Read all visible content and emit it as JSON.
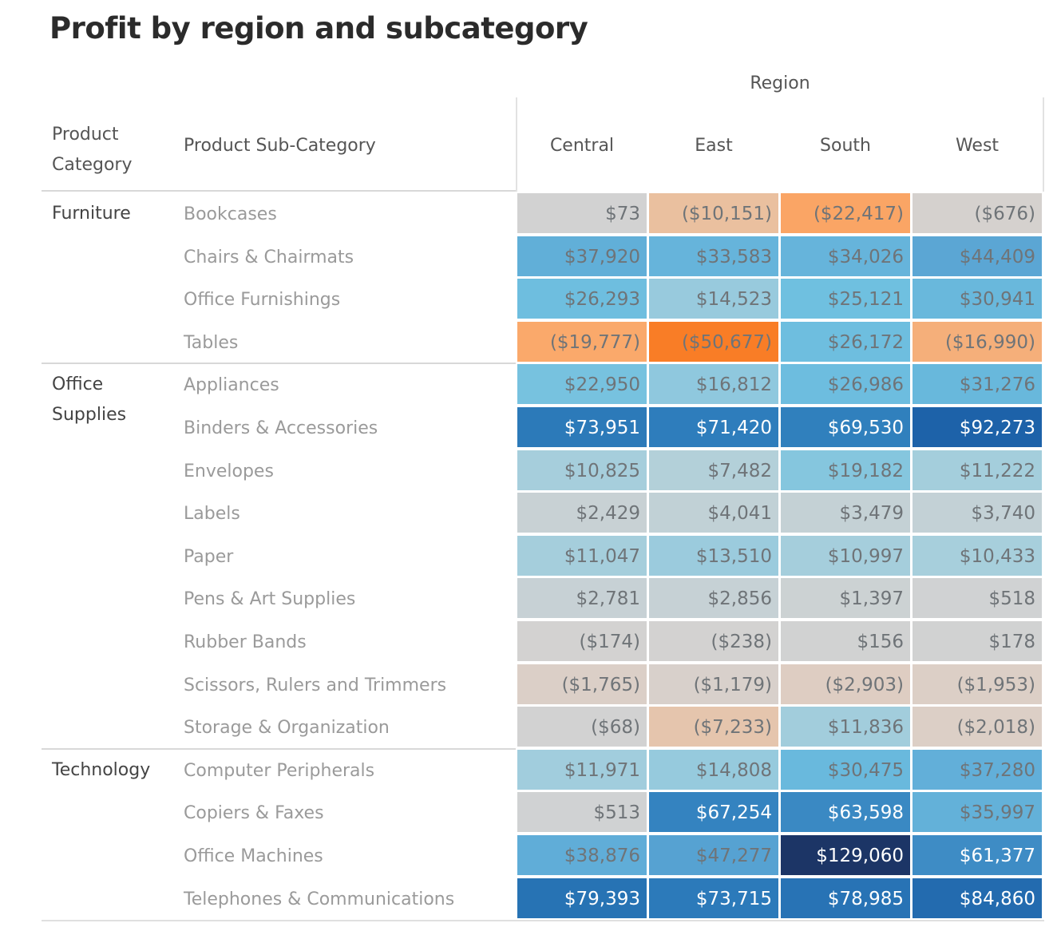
{
  "chart_data": {
    "type": "heatmap",
    "title": "Profit by region and subcategory",
    "column_group_label": "Region",
    "row_headers": [
      "Product Category",
      "Product Sub-Category"
    ],
    "columns": [
      "Central",
      "East",
      "South",
      "West"
    ],
    "color_scale": {
      "type": "diverging",
      "negative": "#f97d26",
      "neutral": "#d2d2d2",
      "positive": "#1c3566"
    },
    "groups": [
      {
        "category": "Furniture",
        "rows": [
          {
            "sub": "Bookcases",
            "values": [
              73,
              -10151,
              -22417,
              -676
            ],
            "labels": [
              "$73",
              "($10,151)",
              "($22,417)",
              "($676)"
            ]
          },
          {
            "sub": "Chairs & Chairmats",
            "values": [
              37920,
              33583,
              34026,
              44409
            ],
            "labels": [
              "$37,920",
              "$33,583",
              "$34,026",
              "$44,409"
            ]
          },
          {
            "sub": "Office Furnishings",
            "values": [
              26293,
              14523,
              25121,
              30941
            ],
            "labels": [
              "$26,293",
              "$14,523",
              "$25,121",
              "$30,941"
            ]
          },
          {
            "sub": "Tables",
            "values": [
              -19777,
              -50677,
              26172,
              -16990
            ],
            "labels": [
              "($19,777)",
              "($50,677)",
              "$26,172",
              "($16,990)"
            ]
          }
        ]
      },
      {
        "category": "Office Supplies",
        "rows": [
          {
            "sub": "Appliances",
            "values": [
              22950,
              16812,
              26986,
              31276
            ],
            "labels": [
              "$22,950",
              "$16,812",
              "$26,986",
              "$31,276"
            ]
          },
          {
            "sub": "Binders & Accessories",
            "values": [
              73951,
              71420,
              69530,
              92273
            ],
            "labels": [
              "$73,951",
              "$71,420",
              "$69,530",
              "$92,273"
            ]
          },
          {
            "sub": "Envelopes",
            "values": [
              10825,
              7482,
              19182,
              11222
            ],
            "labels": [
              "$10,825",
              "$7,482",
              "$19,182",
              "$11,222"
            ]
          },
          {
            "sub": "Labels",
            "values": [
              2429,
              4041,
              3479,
              3740
            ],
            "labels": [
              "$2,429",
              "$4,041",
              "$3,479",
              "$3,740"
            ]
          },
          {
            "sub": "Paper",
            "values": [
              11047,
              13510,
              10997,
              10433
            ],
            "labels": [
              "$11,047",
              "$13,510",
              "$10,997",
              "$10,433"
            ]
          },
          {
            "sub": "Pens & Art Supplies",
            "values": [
              2781,
              2856,
              1397,
              518
            ],
            "labels": [
              "$2,781",
              "$2,856",
              "$1,397",
              "$518"
            ]
          },
          {
            "sub": "Rubber Bands",
            "values": [
              -174,
              -238,
              156,
              178
            ],
            "labels": [
              "($174)",
              "($238)",
              "$156",
              "$178"
            ]
          },
          {
            "sub": "Scissors, Rulers and Trimmers",
            "values": [
              -1765,
              -1179,
              -2903,
              -1953
            ],
            "labels": [
              "($1,765)",
              "($1,179)",
              "($2,903)",
              "($1,953)"
            ]
          },
          {
            "sub": "Storage & Organization",
            "values": [
              -68,
              -7233,
              11836,
              -2018
            ],
            "labels": [
              "($68)",
              "($7,233)",
              "$11,836",
              "($2,018)"
            ]
          }
        ]
      },
      {
        "category": "Technology",
        "rows": [
          {
            "sub": "Computer Peripherals",
            "values": [
              11971,
              14808,
              30475,
              37280
            ],
            "labels": [
              "$11,971",
              "$14,808",
              "$30,475",
              "$37,280"
            ]
          },
          {
            "sub": "Copiers & Faxes",
            "values": [
              513,
              67254,
              63598,
              35997
            ],
            "labels": [
              "$513",
              "$67,254",
              "$63,598",
              "$35,997"
            ]
          },
          {
            "sub": "Office Machines",
            "values": [
              38876,
              47277,
              129060,
              61377
            ],
            "labels": [
              "$38,876",
              "$47,277",
              "$129,060",
              "$61,377"
            ]
          },
          {
            "sub": "Telephones & Communications",
            "values": [
              79393,
              73715,
              78985,
              84860
            ],
            "labels": [
              "$79,393",
              "$73,715",
              "$78,985",
              "$84,860"
            ]
          }
        ]
      }
    ]
  }
}
